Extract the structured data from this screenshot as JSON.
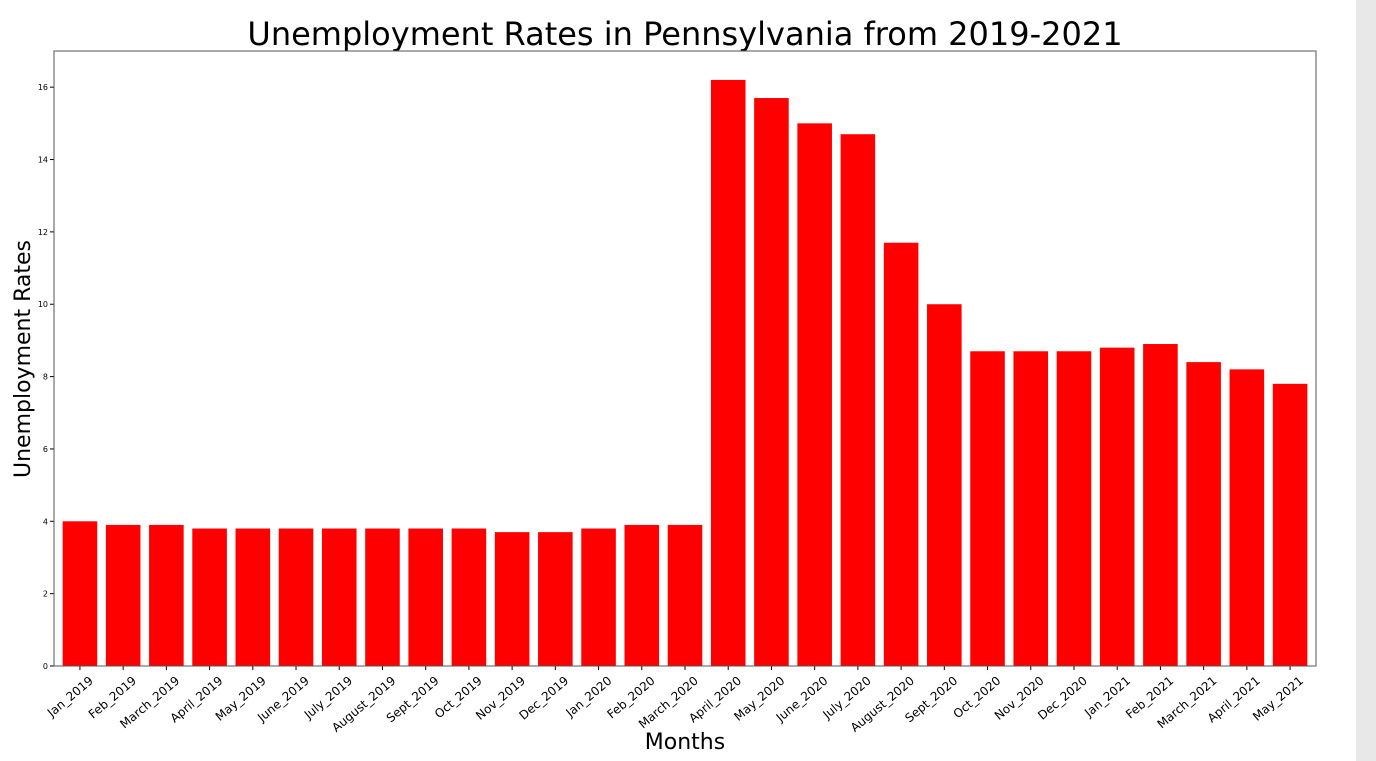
{
  "chart_data": {
    "type": "bar",
    "title": "Unemployment Rates in Pennsylvania from 2019-2021",
    "xlabel": "Months",
    "ylabel": "Unemployment Rates",
    "ylim": [
      0,
      17
    ],
    "yticks": [
      0,
      2,
      4,
      6,
      8,
      10,
      12,
      14,
      16
    ],
    "grid": false,
    "bar_color": "#ff0000",
    "categories": [
      "Jan_2019",
      "Feb_2019",
      "March_2019",
      "April_2019",
      "May_2019",
      "June_2019",
      "July_2019",
      "August_2019",
      "Sept_2019",
      "Oct_2019",
      "Nov_2019",
      "Dec_2019",
      "Jan_2020",
      "Feb_2020",
      "March_2020",
      "April_2020",
      "May_2020",
      "June_2020",
      "July_2020",
      "August_2020",
      "Sept_2020",
      "Oct_2020",
      "Nov_2020",
      "Dec_2020",
      "Jan_2021",
      "Feb_2021",
      "March_2021",
      "April_2021",
      "May_2021"
    ],
    "values": [
      4.0,
      3.9,
      3.9,
      3.8,
      3.8,
      3.8,
      3.8,
      3.8,
      3.8,
      3.8,
      3.7,
      3.7,
      3.8,
      3.9,
      3.9,
      16.2,
      15.7,
      15.0,
      14.7,
      11.7,
      10.0,
      8.7,
      8.7,
      8.7,
      8.8,
      8.9,
      8.4,
      8.2,
      7.8
    ]
  }
}
